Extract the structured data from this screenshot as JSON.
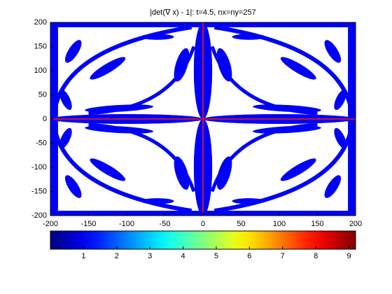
{
  "chart_data": {
    "type": "heatmap",
    "title": "|det(∇ x) - 1|: t=4.5, nx=ny=257",
    "xlim": [
      -200,
      200
    ],
    "xticks": [
      -200,
      -150,
      -100,
      -50,
      0,
      50,
      100,
      150,
      200
    ],
    "ylim": [
      -200,
      200
    ],
    "yticks": [
      -200,
      -150,
      -100,
      -50,
      0,
      50,
      100,
      150,
      200
    ],
    "colorbar": {
      "lim": [
        0,
        9.2
      ],
      "ticks": [
        1,
        2,
        3,
        4,
        5,
        6,
        7,
        8,
        9
      ],
      "colormap": "jet"
    }
  }
}
